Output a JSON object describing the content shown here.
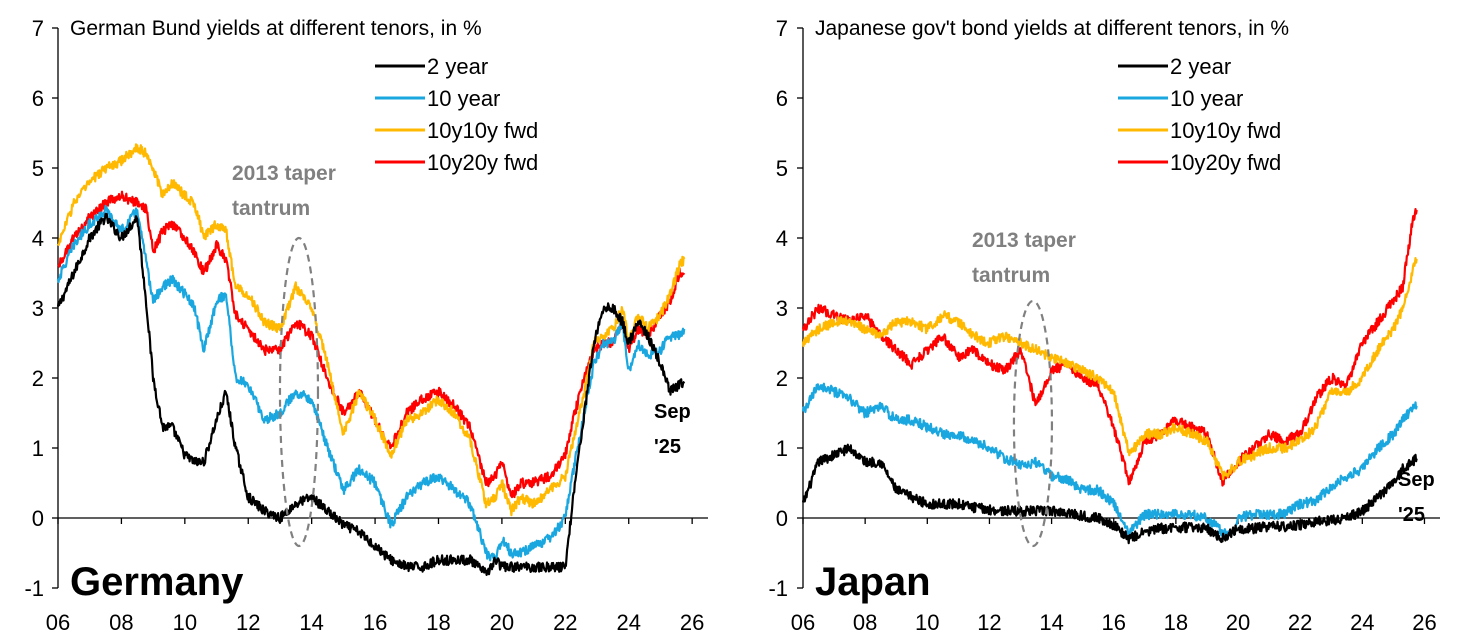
{
  "chart_data": [
    {
      "type": "line",
      "panel_label": "Germany",
      "title": "German Bund yields at different tenors, in %",
      "xlabel": "",
      "ylabel": "",
      "x_range": [
        2006.0,
        2026.5
      ],
      "ylim": [
        -1,
        7
      ],
      "x_tick_labels": [
        "06",
        "08",
        "10",
        "12",
        "14",
        "16",
        "18",
        "20",
        "22",
        "24",
        "26"
      ],
      "y_tick_labels": [
        "-1",
        "0",
        "1",
        "2",
        "3",
        "4",
        "5",
        "6",
        "7"
      ],
      "grid": false,
      "legend_position": "top-center",
      "annotation": {
        "text": [
          "2013 taper",
          "tantrum"
        ],
        "x": 2013.6,
        "ylim": [
          -0.4,
          4.0
        ]
      },
      "end_label": [
        "Sep",
        "'25"
      ],
      "series": [
        {
          "name": "2 year",
          "color": "#000000",
          "x": [
            2006.0,
            2006.5,
            2007.0,
            2007.5,
            2008.0,
            2008.5,
            2008.8,
            2009.0,
            2009.3,
            2009.6,
            2010.0,
            2010.3,
            2010.6,
            2011.0,
            2011.3,
            2011.6,
            2012.0,
            2012.5,
            2013.0,
            2013.5,
            2014.0,
            2014.5,
            2015.0,
            2015.5,
            2016.0,
            2016.5,
            2017.0,
            2017.5,
            2018.0,
            2018.5,
            2019.0,
            2019.5,
            2019.8,
            2020.0,
            2020.3,
            2020.6,
            2021.0,
            2021.5,
            2022.0,
            2022.3,
            2022.6,
            2022.9,
            2023.2,
            2023.5,
            2023.8,
            2024.0,
            2024.3,
            2024.6,
            2025.0,
            2025.3,
            2025.6,
            2025.75
          ],
          "y": [
            3.0,
            3.5,
            4.0,
            4.3,
            4.0,
            4.3,
            3.0,
            2.0,
            1.3,
            1.3,
            0.9,
            0.8,
            0.8,
            1.4,
            1.8,
            1.0,
            0.3,
            0.1,
            0.0,
            0.2,
            0.3,
            0.1,
            -0.1,
            -0.2,
            -0.4,
            -0.6,
            -0.7,
            -0.7,
            -0.6,
            -0.6,
            -0.6,
            -0.8,
            -0.6,
            -0.7,
            -0.7,
            -0.7,
            -0.7,
            -0.7,
            -0.7,
            0.5,
            1.5,
            2.5,
            3.0,
            3.0,
            2.8,
            2.5,
            2.8,
            2.6,
            2.2,
            1.8,
            1.9,
            1.95
          ]
        },
        {
          "name": "10 year",
          "color": "#1aa7e0",
          "x": [
            2006.0,
            2006.5,
            2007.0,
            2007.5,
            2008.0,
            2008.5,
            2008.8,
            2009.0,
            2009.3,
            2009.6,
            2010.0,
            2010.3,
            2010.6,
            2011.0,
            2011.3,
            2011.6,
            2012.0,
            2012.5,
            2013.0,
            2013.5,
            2014.0,
            2014.5,
            2015.0,
            2015.5,
            2016.0,
            2016.5,
            2017.0,
            2017.5,
            2018.0,
            2018.5,
            2019.0,
            2019.5,
            2019.8,
            2020.0,
            2020.3,
            2020.6,
            2021.0,
            2021.5,
            2022.0,
            2022.3,
            2022.6,
            2022.9,
            2023.2,
            2023.5,
            2023.8,
            2024.0,
            2024.3,
            2024.6,
            2025.0,
            2025.3,
            2025.6,
            2025.75
          ],
          "y": [
            3.4,
            3.9,
            4.2,
            4.4,
            4.1,
            4.4,
            3.6,
            3.1,
            3.3,
            3.4,
            3.2,
            3.0,
            2.4,
            3.1,
            3.2,
            2.0,
            1.9,
            1.4,
            1.5,
            1.8,
            1.7,
            1.0,
            0.4,
            0.7,
            0.5,
            -0.1,
            0.3,
            0.5,
            0.6,
            0.4,
            0.2,
            -0.5,
            -0.6,
            -0.3,
            -0.5,
            -0.5,
            -0.4,
            -0.3,
            0.0,
            0.8,
            1.5,
            2.2,
            2.5,
            2.5,
            2.8,
            2.1,
            2.5,
            2.3,
            2.4,
            2.6,
            2.6,
            2.7
          ]
        },
        {
          "name": "10y10y fwd",
          "color": "#ffb900",
          "x": [
            2006.0,
            2006.5,
            2007.0,
            2007.5,
            2008.0,
            2008.5,
            2008.8,
            2009.0,
            2009.3,
            2009.6,
            2010.0,
            2010.3,
            2010.6,
            2011.0,
            2011.3,
            2011.6,
            2012.0,
            2012.5,
            2013.0,
            2013.5,
            2014.0,
            2014.5,
            2015.0,
            2015.5,
            2016.0,
            2016.5,
            2017.0,
            2017.5,
            2018.0,
            2018.5,
            2019.0,
            2019.5,
            2019.8,
            2020.0,
            2020.3,
            2020.6,
            2021.0,
            2021.5,
            2022.0,
            2022.3,
            2022.6,
            2022.9,
            2023.2,
            2023.5,
            2023.8,
            2024.0,
            2024.3,
            2024.6,
            2025.0,
            2025.3,
            2025.6,
            2025.75
          ],
          "y": [
            3.9,
            4.5,
            4.8,
            5.0,
            5.1,
            5.3,
            5.2,
            5.0,
            4.6,
            4.8,
            4.6,
            4.5,
            4.0,
            4.2,
            4.1,
            3.3,
            3.2,
            2.8,
            2.7,
            3.3,
            3.0,
            2.2,
            1.2,
            1.8,
            1.4,
            0.9,
            1.4,
            1.5,
            1.7,
            1.5,
            1.1,
            0.2,
            0.3,
            0.5,
            0.1,
            0.3,
            0.2,
            0.4,
            0.6,
            1.2,
            1.8,
            2.5,
            2.6,
            2.7,
            3.0,
            2.5,
            2.9,
            2.7,
            2.9,
            3.2,
            3.6,
            3.7
          ]
        },
        {
          "name": "10y20y fwd",
          "color": "#ff0000",
          "x": [
            2006.0,
            2006.5,
            2007.0,
            2007.5,
            2008.0,
            2008.5,
            2008.8,
            2009.0,
            2009.3,
            2009.6,
            2010.0,
            2010.3,
            2010.6,
            2011.0,
            2011.3,
            2011.6,
            2012.0,
            2012.5,
            2013.0,
            2013.5,
            2014.0,
            2014.5,
            2015.0,
            2015.5,
            2016.0,
            2016.5,
            2017.0,
            2017.5,
            2018.0,
            2018.5,
            2019.0,
            2019.5,
            2019.8,
            2020.0,
            2020.3,
            2020.6,
            2021.0,
            2021.5,
            2022.0,
            2022.3,
            2022.6,
            2022.9,
            2023.2,
            2023.5,
            2023.8,
            2024.0,
            2024.3,
            2024.6,
            2025.0,
            2025.3,
            2025.6,
            2025.75
          ],
          "y": [
            3.6,
            4.0,
            4.3,
            4.5,
            4.6,
            4.5,
            4.4,
            3.8,
            4.1,
            4.2,
            4.0,
            3.8,
            3.5,
            3.9,
            3.7,
            2.9,
            2.7,
            2.4,
            2.4,
            2.8,
            2.6,
            2.0,
            1.5,
            1.8,
            1.4,
            1.0,
            1.5,
            1.7,
            1.8,
            1.6,
            1.3,
            0.5,
            0.6,
            0.8,
            0.3,
            0.5,
            0.5,
            0.6,
            0.9,
            1.5,
            2.0,
            2.4,
            2.5,
            2.5,
            2.8,
            2.4,
            2.7,
            2.6,
            2.9,
            3.1,
            3.5,
            3.5
          ]
        }
      ]
    },
    {
      "type": "line",
      "panel_label": "Japan",
      "title": "Japanese gov't bond yields at different tenors, in %",
      "xlabel": "",
      "ylabel": "",
      "x_range": [
        2006.0,
        2026.5
      ],
      "ylim": [
        -1,
        7
      ],
      "x_tick_labels": [
        "06",
        "08",
        "10",
        "12",
        "14",
        "16",
        "18",
        "20",
        "22",
        "24",
        "26"
      ],
      "y_tick_labels": [
        "-1",
        "0",
        "1",
        "2",
        "3",
        "4",
        "5",
        "6",
        "7"
      ],
      "grid": false,
      "legend_position": "top-center",
      "annotation": {
        "text": [
          "2013 taper",
          "tantrum"
        ],
        "x": 2013.4,
        "ylim": [
          -0.4,
          3.1
        ]
      },
      "end_label": [
        "Sep",
        "'25"
      ],
      "series": [
        {
          "name": "2 year",
          "color": "#000000",
          "x": [
            2006.0,
            2006.5,
            2007.0,
            2007.5,
            2008.0,
            2008.5,
            2009.0,
            2009.5,
            2010.0,
            2010.5,
            2011.0,
            2011.5,
            2012.0,
            2012.5,
            2013.0,
            2013.5,
            2014.0,
            2014.5,
            2015.0,
            2015.5,
            2016.0,
            2016.5,
            2017.0,
            2017.5,
            2018.0,
            2018.5,
            2019.0,
            2019.5,
            2019.8,
            2020.0,
            2020.5,
            2021.0,
            2021.5,
            2022.0,
            2022.5,
            2023.0,
            2023.5,
            2024.0,
            2024.5,
            2025.0,
            2025.3,
            2025.6,
            2025.75
          ],
          "y": [
            0.2,
            0.8,
            0.9,
            1.0,
            0.8,
            0.8,
            0.4,
            0.3,
            0.2,
            0.2,
            0.2,
            0.15,
            0.12,
            0.1,
            0.1,
            0.1,
            0.1,
            0.08,
            0.03,
            0.0,
            -0.1,
            -0.3,
            -0.2,
            -0.15,
            -0.14,
            -0.13,
            -0.15,
            -0.3,
            -0.2,
            -0.15,
            -0.15,
            -0.12,
            -0.12,
            -0.1,
            -0.05,
            -0.03,
            0.0,
            0.1,
            0.3,
            0.5,
            0.7,
            0.8,
            0.85
          ]
        },
        {
          "name": "10 year",
          "color": "#1aa7e0",
          "x": [
            2006.0,
            2006.5,
            2007.0,
            2007.5,
            2008.0,
            2008.5,
            2009.0,
            2009.5,
            2010.0,
            2010.5,
            2011.0,
            2011.5,
            2012.0,
            2012.5,
            2013.0,
            2013.5,
            2014.0,
            2014.5,
            2015.0,
            2015.5,
            2016.0,
            2016.5,
            2017.0,
            2017.5,
            2018.0,
            2018.5,
            2019.0,
            2019.5,
            2019.8,
            2020.0,
            2020.5,
            2021.0,
            2021.5,
            2022.0,
            2022.5,
            2023.0,
            2023.5,
            2024.0,
            2024.5,
            2025.0,
            2025.3,
            2025.6,
            2025.75
          ],
          "y": [
            1.5,
            1.9,
            1.8,
            1.7,
            1.5,
            1.6,
            1.4,
            1.4,
            1.3,
            1.2,
            1.2,
            1.1,
            1.0,
            0.85,
            0.75,
            0.8,
            0.6,
            0.55,
            0.4,
            0.4,
            0.2,
            -0.2,
            0.05,
            0.05,
            0.05,
            0.05,
            0.0,
            -0.2,
            -0.25,
            0.0,
            0.05,
            0.05,
            0.05,
            0.2,
            0.25,
            0.45,
            0.6,
            0.7,
            1.0,
            1.2,
            1.4,
            1.55,
            1.6
          ]
        },
        {
          "name": "10y10y fwd",
          "color": "#ffb900",
          "x": [
            2006.0,
            2006.5,
            2007.0,
            2007.5,
            2008.0,
            2008.5,
            2009.0,
            2009.5,
            2010.0,
            2010.5,
            2011.0,
            2011.5,
            2012.0,
            2012.5,
            2013.0,
            2013.5,
            2014.0,
            2014.5,
            2015.0,
            2015.5,
            2016.0,
            2016.5,
            2017.0,
            2017.5,
            2018.0,
            2018.5,
            2019.0,
            2019.5,
            2019.8,
            2020.0,
            2020.5,
            2021.0,
            2021.5,
            2022.0,
            2022.5,
            2023.0,
            2023.5,
            2024.0,
            2024.5,
            2025.0,
            2025.3,
            2025.6,
            2025.75
          ],
          "y": [
            2.5,
            2.7,
            2.8,
            2.8,
            2.7,
            2.6,
            2.8,
            2.8,
            2.7,
            2.9,
            2.8,
            2.6,
            2.5,
            2.6,
            2.5,
            2.4,
            2.3,
            2.2,
            2.1,
            2.0,
            1.8,
            0.9,
            1.2,
            1.2,
            1.3,
            1.2,
            1.1,
            0.6,
            0.7,
            0.8,
            0.9,
            1.0,
            1.0,
            1.1,
            1.3,
            1.8,
            1.8,
            2.0,
            2.4,
            2.7,
            3.0,
            3.5,
            3.7
          ]
        },
        {
          "name": "10y20y fwd",
          "color": "#ff0000",
          "x": [
            2006.0,
            2006.5,
            2007.0,
            2007.5,
            2008.0,
            2008.5,
            2009.0,
            2009.5,
            2010.0,
            2010.5,
            2011.0,
            2011.5,
            2012.0,
            2012.5,
            2013.0,
            2013.5,
            2014.0,
            2014.5,
            2015.0,
            2015.5,
            2016.0,
            2016.5,
            2017.0,
            2017.5,
            2018.0,
            2018.5,
            2019.0,
            2019.5,
            2019.8,
            2020.0,
            2020.5,
            2021.0,
            2021.5,
            2022.0,
            2022.5,
            2023.0,
            2023.5,
            2024.0,
            2024.5,
            2025.0,
            2025.3,
            2025.6,
            2025.75
          ],
          "y": [
            2.7,
            3.0,
            2.9,
            2.8,
            2.9,
            2.6,
            2.4,
            2.2,
            2.4,
            2.6,
            2.3,
            2.4,
            2.2,
            2.1,
            2.4,
            1.6,
            2.1,
            2.2,
            2.0,
            1.9,
            1.3,
            0.5,
            1.1,
            1.2,
            1.4,
            1.3,
            1.2,
            0.5,
            0.7,
            0.8,
            1.0,
            1.2,
            1.1,
            1.2,
            1.7,
            2.0,
            1.9,
            2.5,
            2.8,
            3.1,
            3.3,
            4.2,
            4.4
          ]
        }
      ]
    }
  ]
}
